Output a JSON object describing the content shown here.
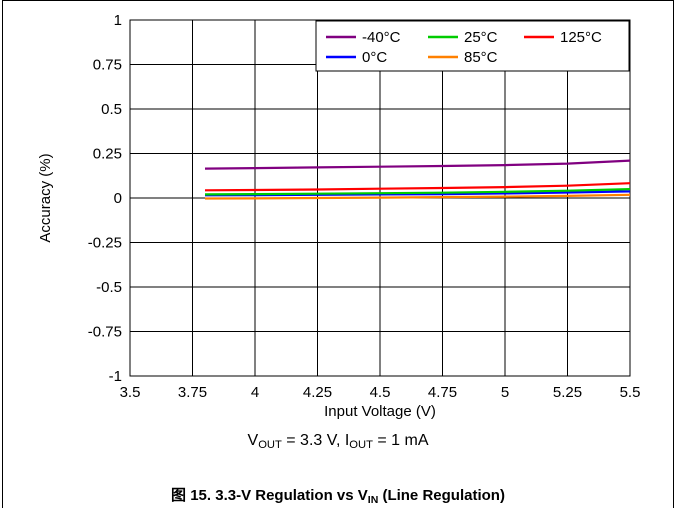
{
  "chart_data": {
    "type": "line",
    "xlabel": "Input Voltage (V)",
    "ylabel": "Accuracy (%)",
    "xlim": [
      3.5,
      5.5
    ],
    "ylim": [
      -1,
      1
    ],
    "xticks": [
      3.5,
      3.75,
      4,
      4.25,
      4.5,
      4.75,
      5,
      5.25,
      5.5
    ],
    "xtick_labels": [
      "3.5",
      "3.75",
      "4",
      "4.25",
      "4.5",
      "4.75",
      "5",
      "5.25",
      "5.5"
    ],
    "yticks": [
      1,
      0.75,
      0.5,
      0.25,
      0,
      -0.25,
      -0.5,
      -0.75,
      -1
    ],
    "ytick_labels": [
      "1",
      "0.75",
      "0.5",
      "0.25",
      "0",
      "-0.25",
      "-0.5",
      "-0.75",
      "-1"
    ],
    "grid": true,
    "legend_position": "top-right",
    "x": [
      3.8,
      4.0,
      4.25,
      4.5,
      4.75,
      5.0,
      5.25,
      5.5
    ],
    "series": [
      {
        "name": "-40°C",
        "color": "#800080",
        "values": [
          0.165,
          0.168,
          0.172,
          0.176,
          0.18,
          0.185,
          0.193,
          0.21
        ]
      },
      {
        "name": "0°C",
        "color": "#0000ff",
        "values": [
          0.015,
          0.016,
          0.018,
          0.02,
          0.022,
          0.026,
          0.031,
          0.037
        ]
      },
      {
        "name": "25°C",
        "color": "#00cc00",
        "values": [
          0.02,
          0.022,
          0.024,
          0.027,
          0.03,
          0.035,
          0.041,
          0.05
        ]
      },
      {
        "name": "85°C",
        "color": "#ff8000",
        "values": [
          -0.003,
          -0.002,
          0.0,
          0.002,
          0.005,
          0.008,
          0.012,
          0.018
        ]
      },
      {
        "name": "125°C",
        "color": "#ff0000",
        "values": [
          0.043,
          0.045,
          0.048,
          0.052,
          0.056,
          0.061,
          0.069,
          0.083
        ]
      }
    ]
  },
  "conditions": {
    "v_main": "V",
    "v_sub": "OUT",
    "v_rest": " = 3.3 V, ",
    "i_main": "I",
    "i_sub": "OUT",
    "i_rest": " = 1 mA"
  },
  "caption": {
    "prefix": "图 15. 3.3-V Regulation vs V",
    "sub": "IN",
    "suffix": " (Line Regulation)"
  }
}
